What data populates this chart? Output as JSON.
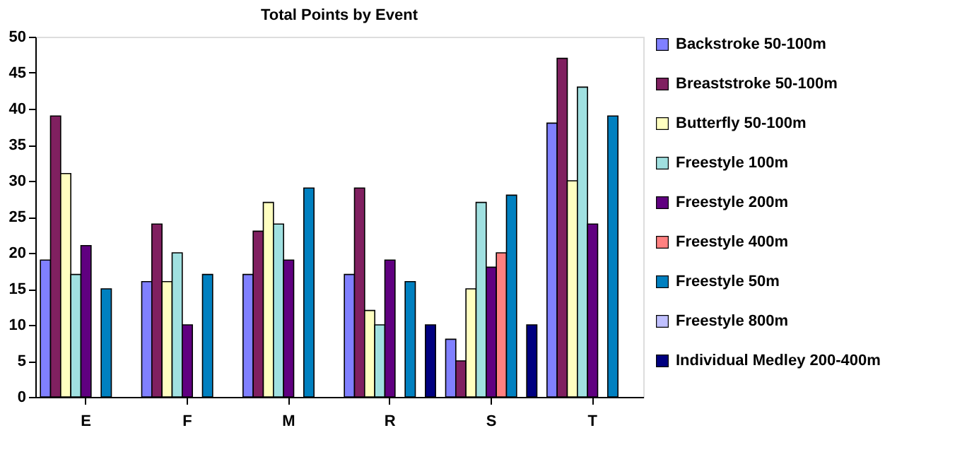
{
  "chart_data": {
    "type": "bar",
    "title": "Total Points by Event",
    "categories": [
      "E",
      "F",
      "M",
      "R",
      "S",
      "T"
    ],
    "series": [
      {
        "name": "Backstroke 50-100m",
        "color": "#8080ff",
        "values": [
          19,
          16,
          17,
          17,
          8,
          38
        ]
      },
      {
        "name": "Breaststroke 50-100m",
        "color": "#802060",
        "values": [
          39,
          24,
          23,
          29,
          5,
          47
        ]
      },
      {
        "name": "Butterfly 50-100m",
        "color": "#ffffc0",
        "values": [
          31,
          16,
          27,
          12,
          15,
          30
        ]
      },
      {
        "name": "Freestyle 100m",
        "color": "#a0e0e0",
        "values": [
          17,
          20,
          24,
          10,
          27,
          43
        ]
      },
      {
        "name": "Freestyle 200m",
        "color": "#600080",
        "values": [
          21,
          10,
          19,
          19,
          18,
          24
        ]
      },
      {
        "name": "Freestyle 400m",
        "color": "#ff8080",
        "values": [
          null,
          null,
          null,
          null,
          20,
          null
        ]
      },
      {
        "name": "Freestyle 50m",
        "color": "#0080c0",
        "values": [
          15,
          17,
          29,
          16,
          28,
          39
        ]
      },
      {
        "name": "Freestyle 800m",
        "color": "#c0c0ff",
        "values": [
          null,
          null,
          null,
          null,
          null,
          null
        ]
      },
      {
        "name": "Individual Medley 200-400m",
        "color": "#000080",
        "values": [
          null,
          null,
          null,
          10,
          10,
          null
        ]
      }
    ],
    "ylim": [
      0,
      50
    ],
    "yticks": [
      0,
      5,
      10,
      15,
      20,
      25,
      30,
      35,
      40,
      45,
      50
    ],
    "grid": false,
    "legend": "right"
  }
}
